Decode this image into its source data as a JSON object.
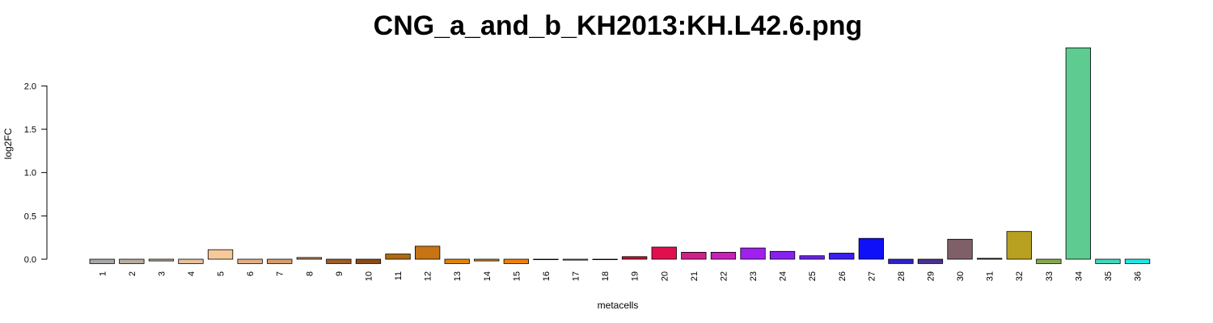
{
  "chart_data": {
    "type": "bar",
    "title": "CNG_a_and_b_KH2013:KH.L42.6.png",
    "xlabel": "metacells",
    "ylabel": "log2FC",
    "ylim": [
      0,
      2.4
    ],
    "yticks": [
      "0.0",
      "0.5",
      "1.0",
      "1.5",
      "2.0"
    ],
    "grid": false,
    "categories": [
      "1",
      "2",
      "3",
      "4",
      "5",
      "6",
      "7",
      "8",
      "9",
      "10",
      "11",
      "12",
      "13",
      "14",
      "15",
      "16",
      "17",
      "18",
      "19",
      "20",
      "21",
      "22",
      "23",
      "24",
      "25",
      "26",
      "27",
      "28",
      "29",
      "30",
      "31",
      "32",
      "33",
      "34",
      "35",
      "36"
    ],
    "values": [
      -0.05,
      -0.05,
      -0.02,
      -0.05,
      0.11,
      -0.05,
      -0.05,
      0.02,
      -0.05,
      -0.05,
      0.06,
      0.15,
      -0.05,
      -0.02,
      -0.05,
      -0.005,
      -0.01,
      -0.005,
      0.03,
      0.14,
      0.08,
      0.08,
      0.13,
      0.09,
      0.04,
      0.07,
      0.24,
      -0.05,
      -0.05,
      0.23,
      0.01,
      0.32,
      -0.05,
      2.44,
      -0.05,
      -0.05
    ],
    "colors": [
      "#a8a8a8",
      "#b8ad9e",
      "#c5b6a0",
      "#e5c29c",
      "#f5c99a",
      "#e3b086",
      "#d79d6c",
      "#be8a5c",
      "#9c5d28",
      "#8a4a16",
      "#b0690e",
      "#c87414",
      "#e0850c",
      "#d4901e",
      "#f0820a",
      "#f08c28",
      "#e8a050",
      "#d8a878",
      "#c8102e",
      "#e0104e",
      "#d0208a",
      "#c820b8",
      "#a020f0",
      "#8a20f0",
      "#6a20e8",
      "#3a20f0",
      "#1010f8",
      "#3020c8",
      "#4a3090",
      "#806068",
      "#403018",
      "#b8a020",
      "#88a850",
      "#5ecc90",
      "#40d8c0",
      "#20e8e8"
    ]
  }
}
